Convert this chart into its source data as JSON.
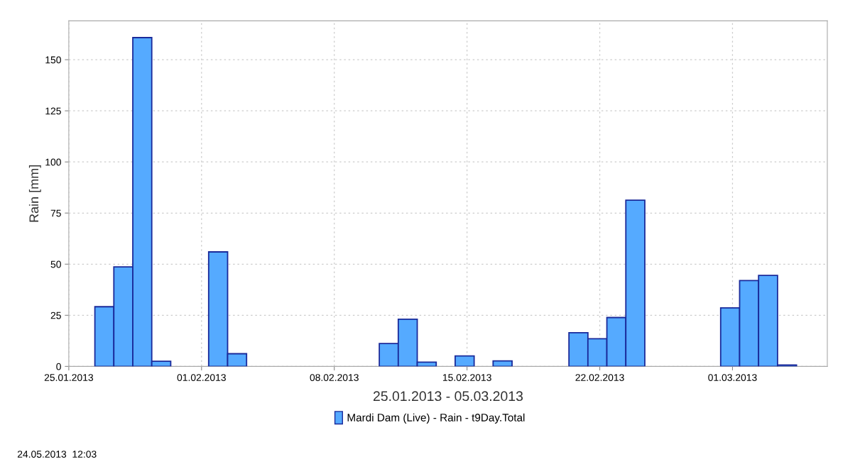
{
  "chart_data": {
    "type": "bar",
    "xlabel": "25.01.2013 - 05.03.2013",
    "ylabel": "Rain [mm]",
    "x": [
      "2013-01-26T21:00",
      "2013-01-27T21:00",
      "2013-01-28T21:00",
      "2013-01-29T21:00",
      "2013-02-01T21:00",
      "2013-02-02T21:00",
      "2013-02-10T21:00",
      "2013-02-11T21:00",
      "2013-02-12T21:00",
      "2013-02-14T21:00",
      "2013-02-16T21:00",
      "2013-02-20T21:00",
      "2013-02-21T21:00",
      "2013-02-22T21:00",
      "2013-02-23T21:00",
      "2013-02-28T21:00",
      "2013-03-01T21:00",
      "2013-03-02T21:00",
      "2013-03-03T21:00"
    ],
    "series": [
      {
        "name": "Mardi Dam (Live) - Rain - t9Day.Total",
        "color": "#55aaff",
        "values": [
          29.2,
          48.7,
          160.8,
          2.5,
          56.0,
          6.2,
          11.2,
          23.1,
          2.1,
          5.1,
          2.7,
          16.5,
          13.5,
          23.9,
          81.3,
          28.6,
          42.0,
          44.5,
          0.7
        ]
      }
    ],
    "xlim": [
      "2013-01-25",
      "2013-03-06"
    ],
    "xticks": [
      {
        "value": "2013-01-25",
        "label": "25.01.2013"
      },
      {
        "value": "2013-02-01",
        "label": "01.02.2013"
      },
      {
        "value": "2013-02-08",
        "label": "08.02.2013"
      },
      {
        "value": "2013-02-15",
        "label": "15.02.2013"
      },
      {
        "value": "2013-02-22",
        "label": "22.02.2013"
      },
      {
        "value": "2013-03-01",
        "label": "01.03.2013"
      }
    ],
    "ylim": [
      0,
      169
    ],
    "yticks": [
      0,
      25,
      50,
      75,
      100,
      125,
      150
    ],
    "grid": true,
    "legend": "bottom",
    "annotations": [
      "24.05.2013  12:03"
    ]
  }
}
